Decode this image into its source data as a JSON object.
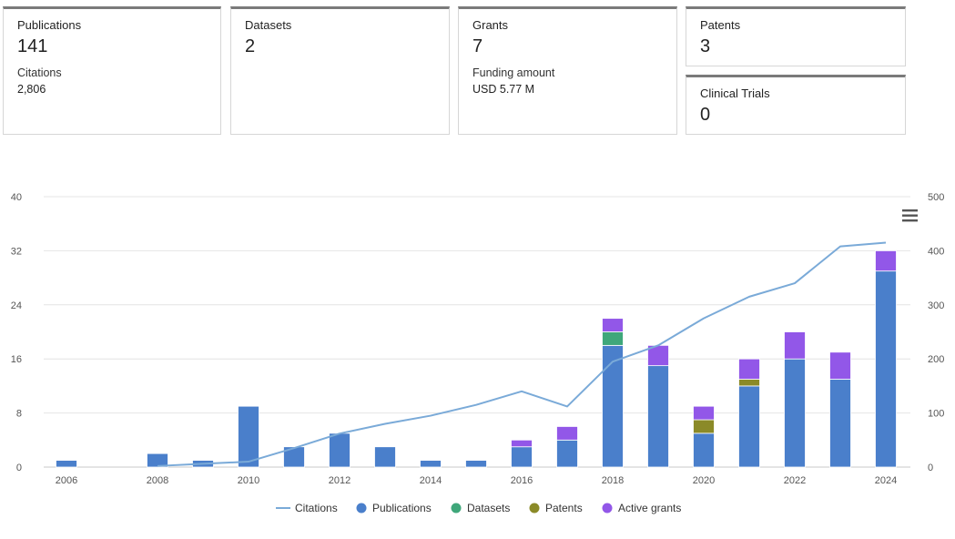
{
  "cards": {
    "publications": {
      "label": "Publications",
      "value": "141",
      "sub_label": "Citations",
      "sub_value": "2,806"
    },
    "datasets": {
      "label": "Datasets",
      "value": "2"
    },
    "grants": {
      "label": "Grants",
      "value": "7",
      "sub_label": "Funding amount",
      "sub_value": "USD 5.77 M"
    },
    "patents": {
      "label": "Patents",
      "value": "3"
    },
    "clinical_trials": {
      "label": "Clinical Trials",
      "value": "0"
    }
  },
  "menu_icon": "hamburger-menu-icon",
  "colors": {
    "publications": "#4a7fcb",
    "datasets": "#3fa77a",
    "patents": "#8b8a28",
    "active_grants": "#9257e8",
    "citations": "#7aaad8",
    "grid": "#e4e4e4"
  },
  "chart_data": {
    "type": "bar",
    "stacked": true,
    "categories": [
      "2006",
      "2007",
      "2008",
      "2009",
      "2010",
      "2011",
      "2012",
      "2013",
      "2014",
      "2015",
      "2016",
      "2017",
      "2018",
      "2019",
      "2020",
      "2021",
      "2022",
      "2023",
      "2024"
    ],
    "x_tick_labels": [
      "2006",
      "2008",
      "2010",
      "2012",
      "2014",
      "2016",
      "2018",
      "2020",
      "2022",
      "2024"
    ],
    "series": [
      {
        "name": "Publications",
        "axis": "left",
        "values": [
          1,
          0,
          2,
          1,
          9,
          3,
          5,
          3,
          1,
          1,
          3,
          4,
          18,
          15,
          5,
          12,
          16,
          13,
          29
        ]
      },
      {
        "name": "Datasets",
        "axis": "left",
        "values": [
          0,
          0,
          0,
          0,
          0,
          0,
          0,
          0,
          0,
          0,
          0,
          0,
          2,
          0,
          0,
          0,
          0,
          0,
          0
        ]
      },
      {
        "name": "Patents",
        "axis": "left",
        "values": [
          0,
          0,
          0,
          0,
          0,
          0,
          0,
          0,
          0,
          0,
          0,
          0,
          0,
          0,
          2,
          1,
          0,
          0,
          0
        ]
      },
      {
        "name": "Active grants",
        "axis": "left",
        "values": [
          0,
          0,
          0,
          0,
          0,
          0,
          0,
          0,
          0,
          0,
          1,
          2,
          2,
          3,
          2,
          3,
          4,
          4,
          3
        ]
      }
    ],
    "line_series": {
      "name": "Citations",
      "axis": "right",
      "type": "line",
      "values": [
        null,
        null,
        2,
        6,
        10,
        35,
        62,
        80,
        95,
        115,
        140,
        112,
        195,
        225,
        275,
        315,
        340,
        408,
        415
      ]
    },
    "y_left": {
      "ticks": [
        "0",
        "8",
        "16",
        "24",
        "32",
        "40"
      ],
      "range": [
        0,
        40
      ]
    },
    "y_right": {
      "ticks": [
        "0",
        "100",
        "200",
        "300",
        "400",
        "500"
      ],
      "range": [
        0,
        500
      ]
    },
    "legend": [
      "Citations",
      "Publications",
      "Datasets",
      "Patents",
      "Active grants"
    ],
    "legend_position": "bottom"
  }
}
